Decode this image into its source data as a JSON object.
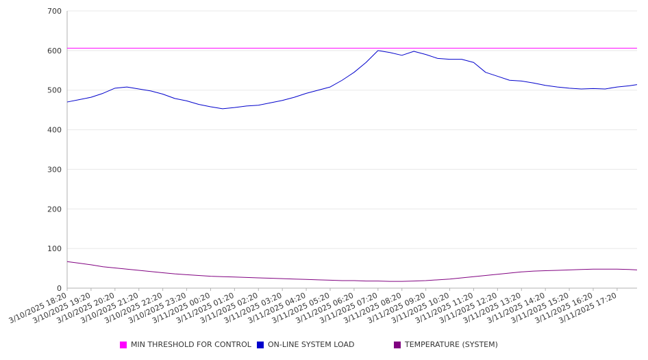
{
  "chart_data": {
    "type": "line",
    "title": "",
    "xlabel": "",
    "ylabel": "",
    "ylim": [
      0,
      700
    ],
    "y_ticks": [
      0,
      100,
      200,
      300,
      400,
      500,
      600,
      700
    ],
    "grid": "horizontal",
    "legend_position": "bottom",
    "x_tick_labels": [
      "3/10/2025 18:20",
      "3/10/2025 19:20",
      "3/10/2025 20:20",
      "3/10/2025 21:20",
      "3/10/2025 22:20",
      "3/10/2025 23:20",
      "3/11/2025 00:20",
      "3/11/2025 01:20",
      "3/11/2025 02:20",
      "3/11/2025 03:20",
      "3/11/2025 04:20",
      "3/11/2025 05:20",
      "3/11/2025 06:20",
      "3/11/2025 07:20",
      "3/11/2025 08:20",
      "3/11/2025 09:20",
      "3/11/2025 10:20",
      "3/11/2025 11:20",
      "3/11/2025 12:20",
      "3/11/2025 13:20",
      "3/11/2025 14:20",
      "3/11/2025 15:20",
      "3/11/2025 16:20",
      "3/11/2025 17:20"
    ],
    "x": [
      "3/10/2025 18:20",
      "3/10/2025 18:50",
      "3/10/2025 19:20",
      "3/10/2025 19:50",
      "3/10/2025 20:20",
      "3/10/2025 20:50",
      "3/10/2025 21:20",
      "3/10/2025 21:50",
      "3/10/2025 22:20",
      "3/10/2025 22:50",
      "3/10/2025 23:20",
      "3/10/2025 23:50",
      "3/11/2025 00:20",
      "3/11/2025 00:50",
      "3/11/2025 01:20",
      "3/11/2025 01:50",
      "3/11/2025 02:20",
      "3/11/2025 02:50",
      "3/11/2025 03:20",
      "3/11/2025 03:50",
      "3/11/2025 04:20",
      "3/11/2025 04:50",
      "3/11/2025 05:20",
      "3/11/2025 05:50",
      "3/11/2025 06:20",
      "3/11/2025 06:50",
      "3/11/2025 07:20",
      "3/11/2025 07:50",
      "3/11/2025 08:20",
      "3/11/2025 08:50",
      "3/11/2025 09:20",
      "3/11/2025 09:50",
      "3/11/2025 10:20",
      "3/11/2025 10:50",
      "3/11/2025 11:20",
      "3/11/2025 11:50",
      "3/11/2025 12:20",
      "3/11/2025 12:50",
      "3/11/2025 13:20",
      "3/11/2025 13:50",
      "3/11/2025 14:20",
      "3/11/2025 14:50",
      "3/11/2025 15:20",
      "3/11/2025 15:50",
      "3/11/2025 16:20",
      "3/11/2025 16:50",
      "3/11/2025 17:20",
      "3/11/2025 17:50",
      "3/11/2025 18:10"
    ],
    "series": [
      {
        "name": "MIN THRESHOLD FOR CONTROL",
        "color": "#ff00ff",
        "values": [
          606,
          606,
          606,
          606,
          606,
          606,
          606,
          606,
          606,
          606,
          606,
          606,
          606,
          606,
          606,
          606,
          606,
          606,
          606,
          606,
          606,
          606,
          606,
          606,
          606,
          606,
          606,
          606,
          606,
          606,
          606,
          606,
          606,
          606,
          606,
          606,
          606,
          606,
          606,
          606,
          606,
          606,
          606,
          606,
          606,
          606,
          606,
          606,
          606
        ]
      },
      {
        "name": "ON-LINE SYSTEM LOAD",
        "color": "#0000cc",
        "values": [
          470,
          476,
          482,
          492,
          505,
          508,
          503,
          498,
          490,
          479,
          473,
          464,
          458,
          453,
          456,
          460,
          462,
          468,
          474,
          482,
          492,
          500,
          508,
          525,
          545,
          570,
          600,
          595,
          588,
          598,
          590,
          580,
          578,
          578,
          570,
          545,
          535,
          525,
          523,
          518,
          512,
          508,
          505,
          503,
          504,
          503,
          508,
          511,
          514
        ]
      },
      {
        "name": "TEMPERATURE (SYSTEM)",
        "color": "#800080",
        "values": [
          67,
          63,
          59,
          54,
          51,
          48,
          45,
          42,
          39,
          36,
          34,
          32,
          30,
          29,
          28,
          27,
          26,
          25,
          24,
          23,
          22,
          21,
          20,
          19,
          19,
          18,
          18,
          17,
          17,
          18,
          19,
          21,
          23,
          26,
          29,
          32,
          35,
          38,
          41,
          43,
          44,
          45,
          46,
          47,
          48,
          48,
          48,
          47,
          46
        ]
      }
    ]
  },
  "colors": {
    "axis": "#b0b0b0",
    "grid": "#e8e8e8",
    "text": "#333333"
  }
}
